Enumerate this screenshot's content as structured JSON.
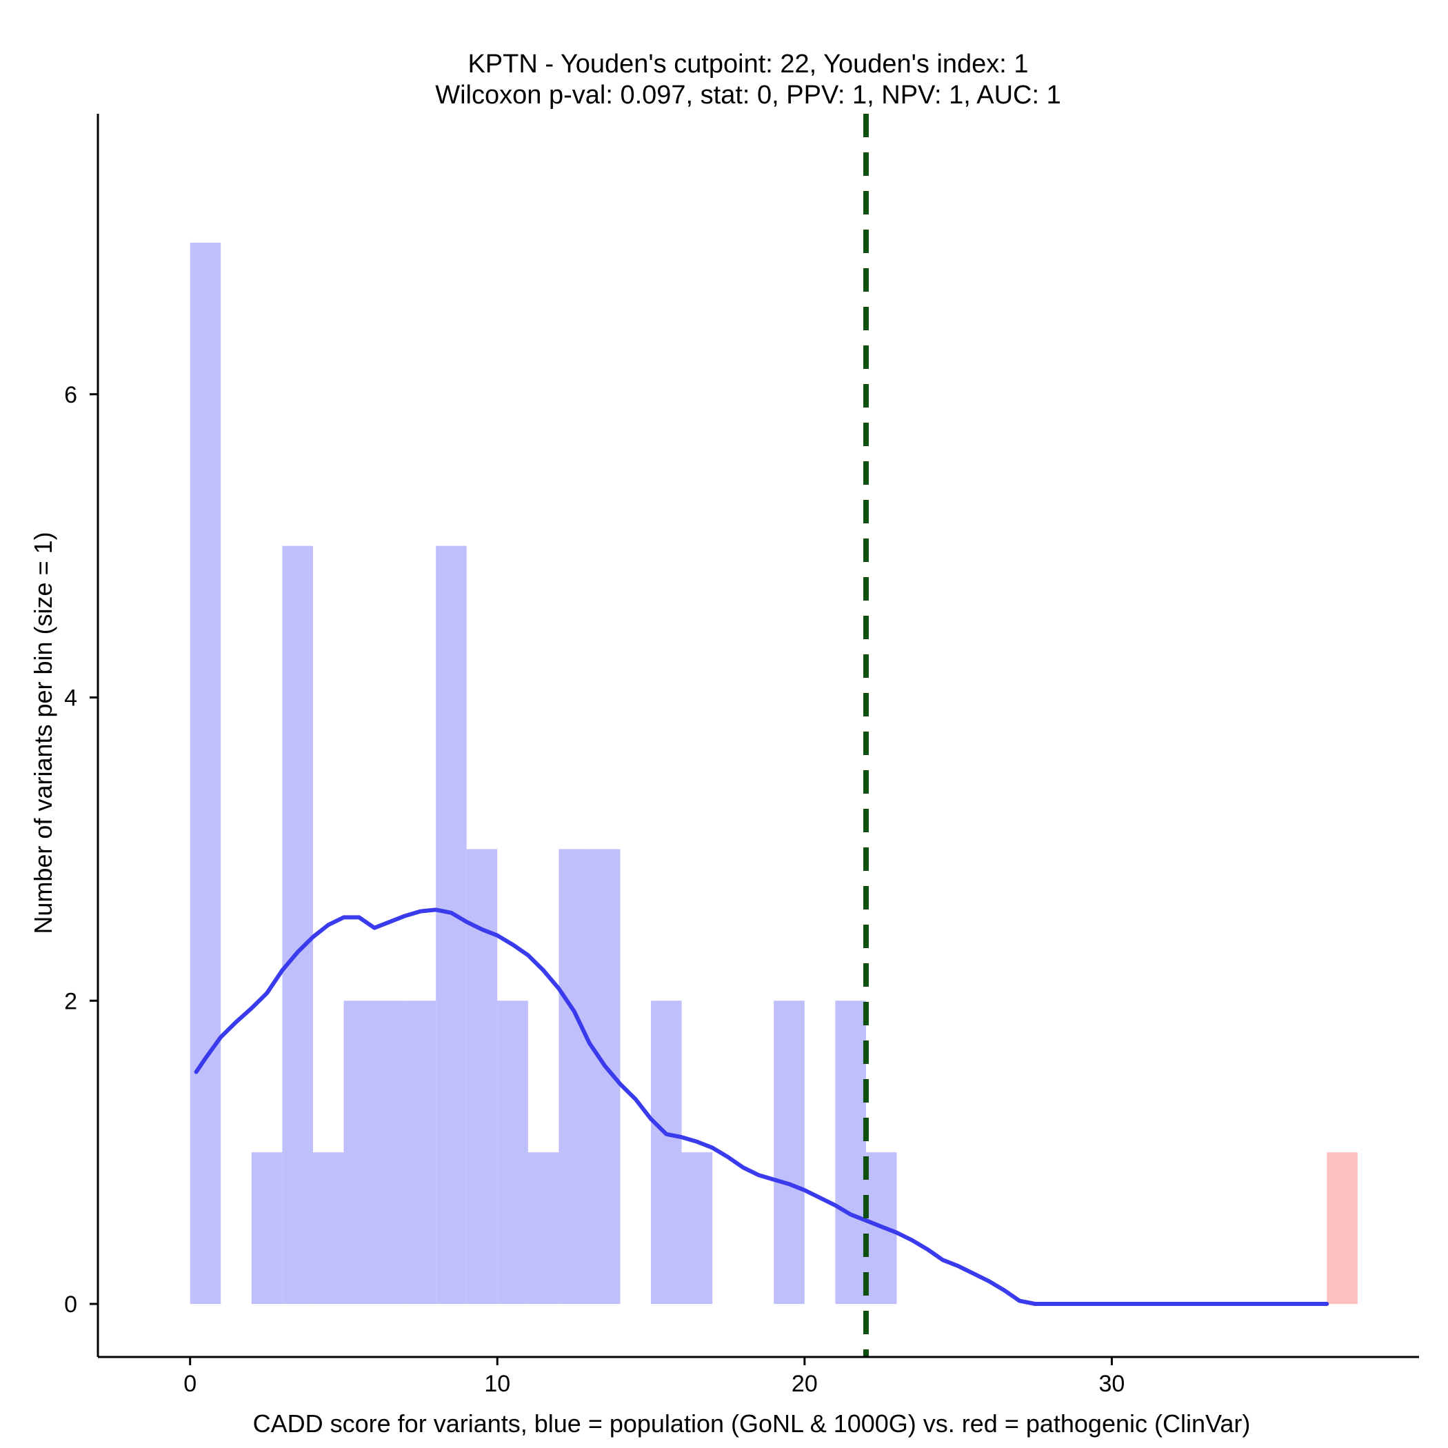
{
  "chart_data": {
    "type": "bar",
    "title": "KPTN - Youden's cutpoint: 22, Youden's index: 1",
    "subtitle": "Wilcoxon p-val: 0.097, stat: 0, PPV: 1, NPV: 1, AUC: 1",
    "xlabel": "CADD score for variants, blue = population (GoNL & 1000G) vs. red = pathogenic (ClinVar)",
    "ylabel": "Number of variants per bin (size = 1)",
    "xlim": [
      -3,
      40
    ],
    "ylim": [
      -0.35,
      7.85
    ],
    "x_ticks": [
      0,
      10,
      20,
      30
    ],
    "y_ticks": [
      0,
      2,
      4,
      6
    ],
    "bin_width": 1,
    "colors": {
      "population": "#bfbffb",
      "pathogenic": "#fdbfbf",
      "density": "#3b3bee",
      "cutpoint": "#0f4f0f",
      "axis": "#000000"
    },
    "series": [
      {
        "name": "population (GoNL & 1000G)",
        "bins": [
          {
            "x0": 0,
            "count": 7
          },
          {
            "x0": 2,
            "count": 1
          },
          {
            "x0": 3,
            "count": 5
          },
          {
            "x0": 4,
            "count": 1
          },
          {
            "x0": 5,
            "count": 2
          },
          {
            "x0": 6,
            "count": 2
          },
          {
            "x0": 7,
            "count": 2
          },
          {
            "x0": 8,
            "count": 5
          },
          {
            "x0": 9,
            "count": 3
          },
          {
            "x0": 10,
            "count": 2
          },
          {
            "x0": 11,
            "count": 1
          },
          {
            "x0": 12,
            "count": 3
          },
          {
            "x0": 13,
            "count": 3
          },
          {
            "x0": 15,
            "count": 2
          },
          {
            "x0": 16,
            "count": 1
          },
          {
            "x0": 19,
            "count": 2
          },
          {
            "x0": 21,
            "count": 2
          },
          {
            "x0": 22,
            "count": 1
          }
        ]
      },
      {
        "name": "pathogenic (ClinVar)",
        "bins": [
          {
            "x0": 37,
            "count": 1
          }
        ]
      }
    ],
    "density_curve": {
      "x": [
        0.2,
        0.5,
        1.0,
        1.5,
        2.0,
        2.5,
        3.0,
        3.5,
        4.0,
        4.5,
        5.0,
        5.5,
        6.0,
        6.5,
        7.0,
        7.5,
        8.0,
        8.5,
        9.0,
        9.5,
        10.0,
        10.5,
        11.0,
        11.5,
        12.0,
        12.5,
        13.0,
        13.5,
        14.0,
        14.5,
        15.0,
        15.5,
        16.0,
        16.5,
        17.0,
        17.5,
        18.0,
        18.5,
        19.0,
        19.5,
        20.0,
        20.5,
        21.0,
        21.5,
        22.0,
        22.5,
        23.0,
        23.5,
        24.0,
        24.5,
        25.0,
        25.5,
        26.0,
        26.5,
        27.0,
        27.5,
        28.0,
        29.0,
        30.0,
        32.0,
        34.0,
        36.0,
        37.0
      ],
      "y": [
        1.53,
        1.62,
        1.76,
        1.86,
        1.95,
        2.05,
        2.2,
        2.32,
        2.42,
        2.5,
        2.55,
        2.55,
        2.48,
        2.52,
        2.56,
        2.59,
        2.6,
        2.58,
        2.52,
        2.47,
        2.43,
        2.37,
        2.3,
        2.2,
        2.08,
        1.93,
        1.72,
        1.57,
        1.45,
        1.35,
        1.22,
        1.12,
        1.1,
        1.07,
        1.03,
        0.97,
        0.9,
        0.85,
        0.82,
        0.79,
        0.75,
        0.7,
        0.65,
        0.59,
        0.55,
        0.51,
        0.47,
        0.42,
        0.36,
        0.29,
        0.25,
        0.2,
        0.15,
        0.09,
        0.02,
        0.0,
        0.0,
        0.0,
        0.0,
        0.0,
        0.0,
        0.0,
        0.0
      ]
    },
    "cutpoint": 22,
    "grid": false,
    "legend": "none"
  }
}
